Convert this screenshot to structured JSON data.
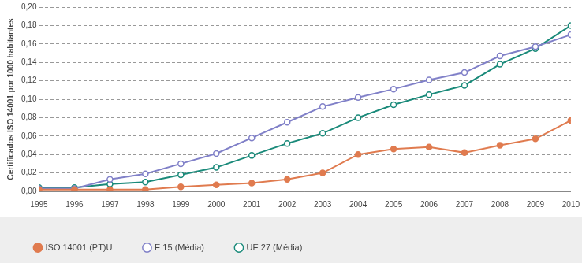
{
  "chart_data": {
    "type": "line",
    "y_label": "Certificados ISO 14001 por 1000 habitantes",
    "categories": [
      "1995",
      "1996",
      "1997",
      "1998",
      "1999",
      "2000",
      "2001",
      "2002",
      "2003",
      "2004",
      "2005",
      "2006",
      "2007",
      "2008",
      "2009",
      "2010"
    ],
    "series": [
      {
        "name": "ISO 14001 (PT)U",
        "color": "#e07b4f",
        "marker": "filled_circle",
        "values": [
          0.002,
          0.002,
          0.002,
          0.002,
          0.005,
          0.007,
          0.009,
          0.013,
          0.02,
          0.04,
          0.046,
          0.048,
          0.042,
          0.05,
          0.057,
          0.077
        ]
      },
      {
        "name": "E 15 (Média)",
        "color": "#8080c8",
        "marker": "open_circle",
        "values": [
          0.003,
          0.003,
          0.013,
          0.019,
          0.03,
          0.041,
          0.058,
          0.075,
          0.092,
          0.102,
          0.111,
          0.121,
          0.129,
          0.147,
          0.157,
          0.17
        ]
      },
      {
        "name": "UE 27 (Média)",
        "color": "#1a8a7a",
        "marker": "open_circle",
        "values": [
          0.004,
          0.004,
          0.008,
          0.01,
          0.018,
          0.026,
          0.039,
          0.052,
          0.063,
          0.08,
          0.094,
          0.105,
          0.115,
          0.138,
          0.155,
          0.18
        ]
      }
    ],
    "ylim": [
      0,
      0.2
    ],
    "yticks": [
      {
        "value": 0,
        "label": "0,00"
      },
      {
        "value": 0.02,
        "label": "0,02"
      },
      {
        "value": 0.04,
        "label": "0,04"
      },
      {
        "value": 0.06,
        "label": "0,06"
      },
      {
        "value": 0.08,
        "label": "0,08"
      },
      {
        "value": 0.1,
        "label": "0,10"
      },
      {
        "value": 0.12,
        "label": "0,12"
      },
      {
        "value": 0.14,
        "label": "0,14"
      },
      {
        "value": 0.16,
        "label": "0,16"
      },
      {
        "value": 0.18,
        "label": "0,18"
      },
      {
        "value": 0.2,
        "label": "0,20"
      }
    ],
    "grid": true,
    "legend": "bottom-left"
  }
}
